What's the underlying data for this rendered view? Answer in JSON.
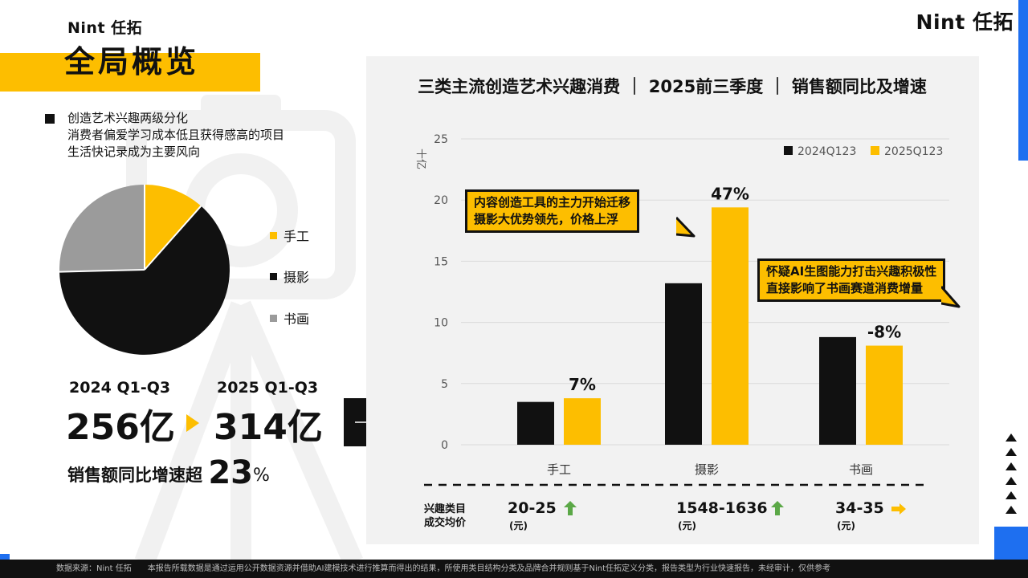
{
  "brand": {
    "small": "Nint 任拓",
    "large": "Nint 任拓"
  },
  "title": "全局概览",
  "summary": {
    "heading": "创造艺术兴趣两级分化",
    "lines": [
      "消费者偏爱学习成本低且获得感高的项目",
      "生活快记录成为主要风向"
    ]
  },
  "pie": {
    "legend": [
      {
        "label": "手工",
        "color": "#FDBE00"
      },
      {
        "label": "摄影",
        "color": "#111111"
      },
      {
        "label": "书画",
        "color": "#9B9B9B"
      }
    ]
  },
  "totals": {
    "period_from": "2024 Q1-Q3",
    "period_to": "2025 Q1-Q3",
    "value_from": "256亿",
    "value_to": "314亿",
    "growth_prefix": "销售额同比增速超",
    "growth_value": "23",
    "growth_unit": "%"
  },
  "colors": {
    "accent": "#FDBE00",
    "dark": "#111111",
    "grey": "#9B9B9B",
    "up": "#5BA847",
    "blue": "#1E6FF0"
  },
  "chart_data": {
    "type": "bar",
    "title": "三类主流创造艺术兴趣消费 ｜ 2025前三季度 ｜ 销售额同比及增速",
    "ylabel": "十亿",
    "ylim": [
      0,
      25
    ],
    "yticks": [
      0,
      5,
      10,
      15,
      20,
      25
    ],
    "categories": [
      "手工",
      "摄影",
      "书画"
    ],
    "series": [
      {
        "name": "2024Q123",
        "color": "#111111",
        "values": [
          3.5,
          13.2,
          8.8
        ]
      },
      {
        "name": "2025Q123",
        "color": "#FDBE00",
        "values": [
          3.8,
          19.4,
          8.1
        ]
      }
    ],
    "growth_labels": [
      "7%",
      "47%",
      "-8%"
    ],
    "legend_position": "top-right",
    "grid": true
  },
  "callouts": [
    {
      "lines": [
        "内容创造工具的主力开始迁移",
        "摄影大优势领先，价格上浮"
      ]
    },
    {
      "lines": [
        "怀疑AI生图能力打击兴趣积极性",
        "直接影响了书画赛道消费增量"
      ]
    }
  ],
  "price": {
    "label_lines": [
      "兴趣类目",
      "成交均价"
    ],
    "items": [
      {
        "range": "20-25",
        "unit": "(元)",
        "trend": "up"
      },
      {
        "range": "1548-1636",
        "unit": "(元)",
        "trend": "up"
      },
      {
        "range": "34-35",
        "unit": "(元)",
        "trend": "flat"
      }
    ]
  },
  "footer": "数据来源：Nint 任拓　　本报告所载数据是通过运用公开数据资源并借助AI建模技术进行推算而得出的结果，所使用类目结构分类及品牌合并规则基于Nint任拓定义分类，报告类型为行业快速报告，未经审计，仅供参考"
}
